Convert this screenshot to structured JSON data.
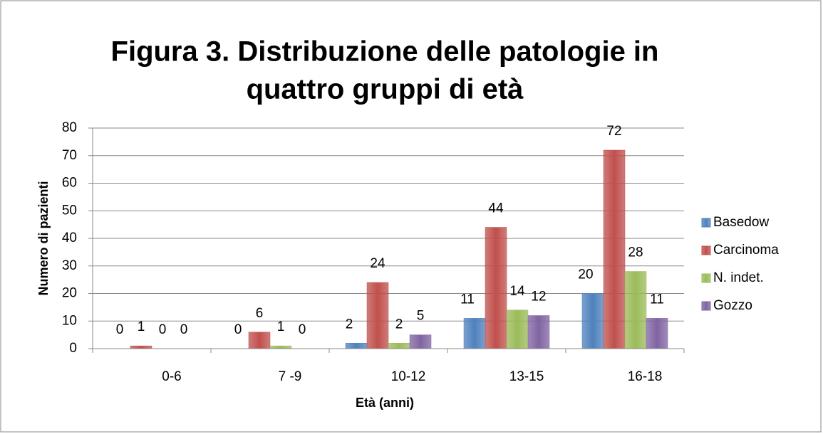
{
  "chart_data": {
    "type": "bar",
    "title": [
      "Figura 3. Distribuzione delle patologie in",
      "quattro gruppi di età"
    ],
    "x_label": "Età (anni)",
    "y_label": "Numero di pazienti",
    "categories": [
      "0-6",
      "7 -9",
      "10-12",
      "13-15",
      "16-18"
    ],
    "series": [
      {
        "name": "Basedow",
        "color": "#4f81bd",
        "values": [
          0,
          0,
          2,
          11,
          20
        ]
      },
      {
        "name": "Carcinoma",
        "color": "#c0504d",
        "values": [
          1,
          6,
          24,
          44,
          72
        ]
      },
      {
        "name": "N. indet.",
        "color": "#9bbb59",
        "values": [
          0,
          1,
          2,
          14,
          28
        ]
      },
      {
        "name": "Gozzo",
        "color": "#8064a2",
        "values": [
          0,
          0,
          5,
          12,
          11
        ]
      }
    ],
    "ylim": [
      0,
      80
    ],
    "yticks": [
      0,
      10,
      20,
      30,
      40,
      50,
      60,
      70,
      80
    ],
    "grid": true,
    "legend": "right"
  }
}
